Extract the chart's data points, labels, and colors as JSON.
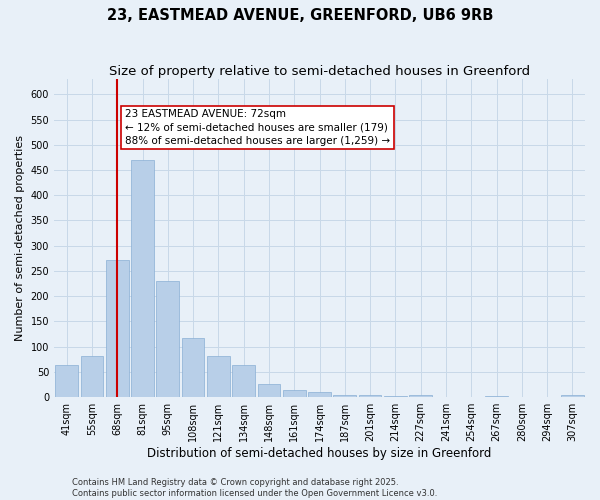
{
  "title": "23, EASTMEAD AVENUE, GREENFORD, UB6 9RB",
  "subtitle": "Size of property relative to semi-detached houses in Greenford",
  "xlabel": "Distribution of semi-detached houses by size in Greenford",
  "ylabel": "Number of semi-detached properties",
  "categories": [
    "41sqm",
    "55sqm",
    "68sqm",
    "81sqm",
    "95sqm",
    "108sqm",
    "121sqm",
    "134sqm",
    "148sqm",
    "161sqm",
    "174sqm",
    "187sqm",
    "201sqm",
    "214sqm",
    "227sqm",
    "241sqm",
    "254sqm",
    "267sqm",
    "280sqm",
    "294sqm",
    "307sqm"
  ],
  "values": [
    63,
    82,
    272,
    470,
    230,
    118,
    82,
    63,
    25,
    15,
    10,
    5,
    4,
    2,
    5,
    0,
    0,
    2,
    0,
    0,
    4
  ],
  "bar_color": "#b8cfe8",
  "bar_edge_color": "#8aafd4",
  "vline_x": 2,
  "annotation_text": "23 EASTMEAD AVENUE: 72sqm\n← 12% of semi-detached houses are smaller (179)\n88% of semi-detached houses are larger (1,259) →",
  "annotation_box_color": "#ffffff",
  "annotation_box_edge_color": "#cc0000",
  "vline_color": "#cc0000",
  "grid_color": "#c8d8e8",
  "background_color": "#e8f0f8",
  "ylim": [
    0,
    630
  ],
  "yticks": [
    0,
    50,
    100,
    150,
    200,
    250,
    300,
    350,
    400,
    450,
    500,
    550,
    600
  ],
  "footer": "Contains HM Land Registry data © Crown copyright and database right 2025.\nContains public sector information licensed under the Open Government Licence v3.0.",
  "title_fontsize": 10.5,
  "subtitle_fontsize": 9.5,
  "xlabel_fontsize": 8.5,
  "ylabel_fontsize": 8,
  "tick_fontsize": 7,
  "footer_fontsize": 6,
  "ann_fontsize": 7.5
}
